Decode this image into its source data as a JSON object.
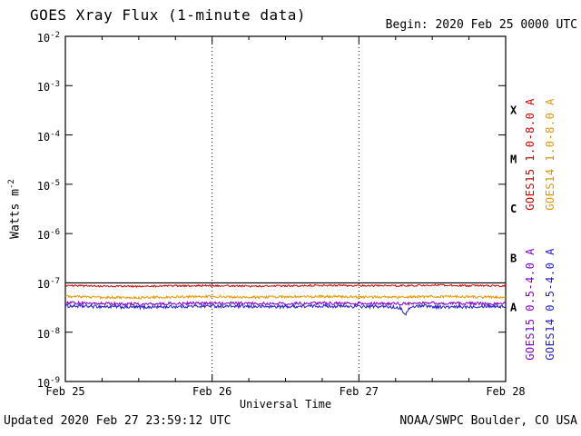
{
  "title": "GOES Xray Flux (1-minute data)",
  "begin_label": "Begin:  2020 Feb 25 0000 UTC",
  "footer": {
    "updated": "Updated 2020 Feb 27 23:59:12 UTC",
    "source": "NOAA/SWPC Boulder, CO USA"
  },
  "chart_data": {
    "type": "line",
    "title": "GOES Xray Flux (1-minute data)",
    "begin": "2020 Feb 25 0000 UTC",
    "xlabel": "Universal Time",
    "ylabel_base": "Watts m",
    "ylabel_sup": "-2",
    "y_tick_base": "10",
    "x_range_hours": [
      0,
      72
    ],
    "y_exponent_range": [
      -9,
      -2
    ],
    "x_ticks": [
      {
        "hours": 0,
        "label": "Feb 25"
      },
      {
        "hours": 24,
        "label": "Feb 26"
      },
      {
        "hours": 48,
        "label": "Feb 27"
      },
      {
        "hours": 72,
        "label": "Feb 28"
      }
    ],
    "y_tick_exponents": [
      -2,
      -3,
      -4,
      -5,
      -6,
      -7,
      -8,
      -9
    ],
    "grid_vlines_hours": [
      24,
      48
    ],
    "threshold_line_level": 1e-07,
    "flare_classes": [
      {
        "label": "X",
        "log_center": -3.5
      },
      {
        "label": "M",
        "log_center": -4.5
      },
      {
        "label": "C",
        "log_center": -5.5
      },
      {
        "label": "B",
        "log_center": -6.5
      },
      {
        "label": "A",
        "log_center": -7.5
      }
    ],
    "series": [
      {
        "name": "GOES15 1.0-8.0 A",
        "color": "#cc0000",
        "noise_log": 0.018,
        "x_hours": [
          0,
          6,
          12,
          18,
          24,
          30,
          36,
          42,
          48,
          54,
          60,
          66,
          72
        ],
        "values": [
          8.8e-08,
          8.6e-08,
          8.5e-08,
          8.7e-08,
          8.8e-08,
          8.6e-08,
          8.7e-08,
          8.9e-08,
          8.8e-08,
          8.7e-08,
          9e-08,
          8.8e-08,
          8.7e-08
        ]
      },
      {
        "name": "GOES14 1.0-8.0 A",
        "color": "#e69500",
        "noise_log": 0.024,
        "x_hours": [
          0,
          6,
          12,
          18,
          24,
          30,
          36,
          42,
          48,
          54,
          60,
          66,
          72
        ],
        "values": [
          5.3e-08,
          5.1e-08,
          5e-08,
          5.2e-08,
          5.3e-08,
          5.1e-08,
          5.2e-08,
          5.3e-08,
          5.2e-08,
          5.1e-08,
          5.3e-08,
          5.2e-08,
          5.1e-08
        ]
      },
      {
        "name": "GOES15 0.5-4.0 A",
        "color": "#8800cc",
        "noise_log": 0.03,
        "x_hours": [
          0,
          6,
          12,
          18,
          24,
          30,
          36,
          42,
          48,
          54,
          60,
          66,
          72
        ],
        "values": [
          3.9e-08,
          3.8e-08,
          3.7e-08,
          3.8e-08,
          3.9e-08,
          3.8e-08,
          3.8e-08,
          3.9e-08,
          3.8e-08,
          3.8e-08,
          3.9e-08,
          3.8e-08,
          3.8e-08
        ]
      },
      {
        "name": "GOES14 0.5-4.0 A",
        "color": "#2222cc",
        "noise_log": 0.032,
        "x_hours": [
          0,
          6,
          12,
          18,
          24,
          30,
          36,
          42,
          48,
          52,
          54,
          55,
          55.5,
          56,
          57,
          58.5,
          60,
          63,
          66,
          69,
          72
        ],
        "values": [
          3.4e-08,
          3.3e-08,
          3.2e-08,
          3.3e-08,
          3.4e-08,
          3.3e-08,
          3.3e-08,
          3.4e-08,
          3.3e-08,
          3.3e-08,
          3.2e-08,
          3.1e-08,
          2.1e-08,
          2.9e-08,
          3.3e-08,
          3.5e-08,
          3.3e-08,
          3.2e-08,
          3.3e-08,
          3.4e-08,
          3.3e-08
        ]
      }
    ],
    "right_labels": [
      {
        "text": "GOES15 1.0-8.0 A",
        "color": "#cc0000",
        "col": 0,
        "row": 0
      },
      {
        "text": "GOES14 1.0-8.0 A",
        "color": "#e69500",
        "col": 1,
        "row": 0
      },
      {
        "text": "GOES15 0.5-4.0 A",
        "color": "#8800cc",
        "col": 0,
        "row": 1
      },
      {
        "text": "GOES14 0.5-4.0 A",
        "color": "#2222cc",
        "col": 1,
        "row": 1
      }
    ]
  }
}
